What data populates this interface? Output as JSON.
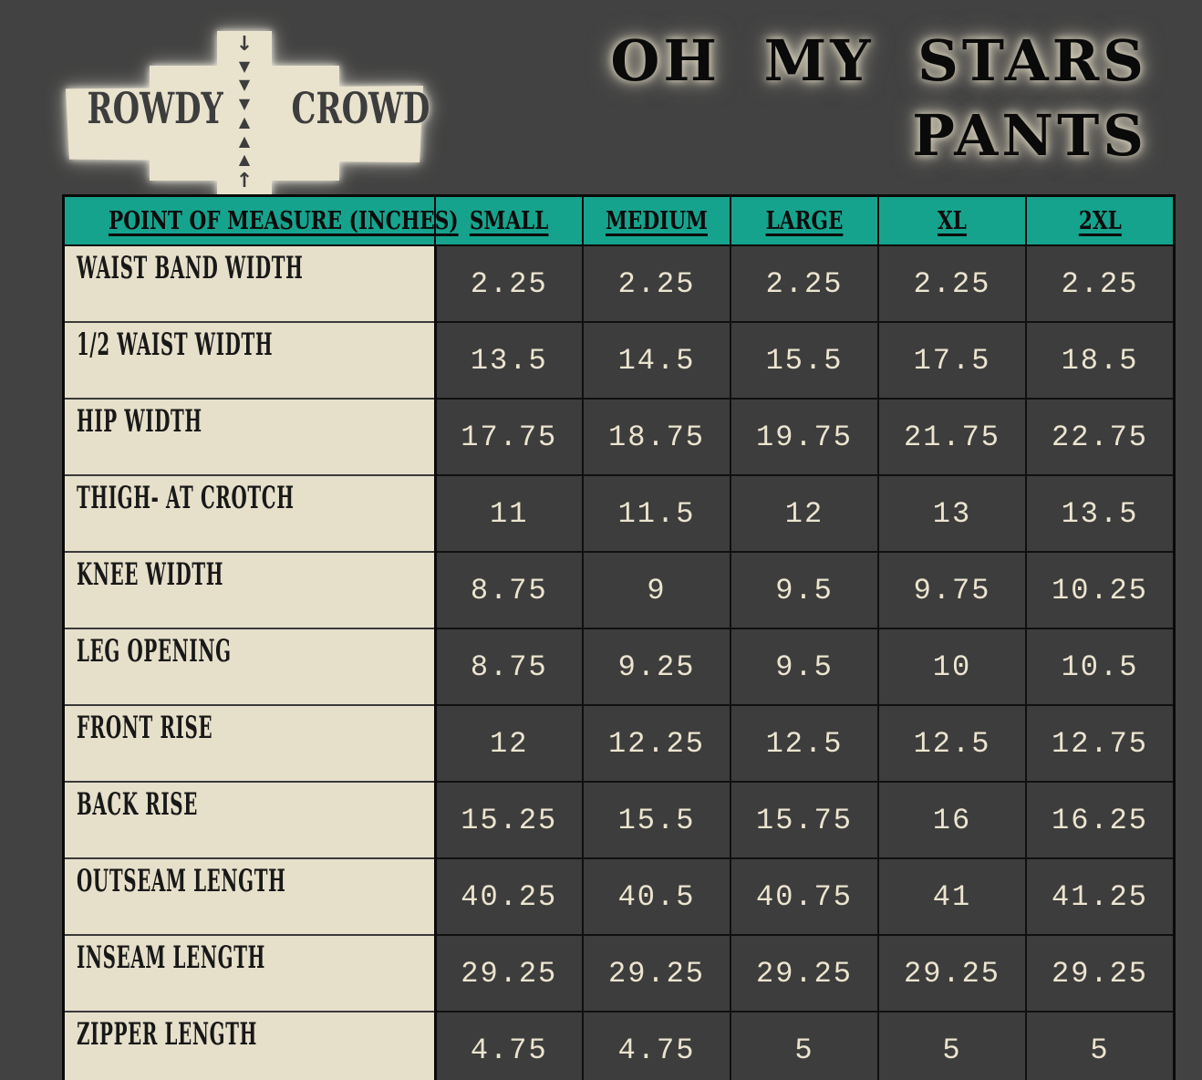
{
  "colors": {
    "background": "#424242",
    "teal_header": "#16a38d",
    "cream_label_bg": "#e6dfca",
    "cream_logo": "#e9e2cd",
    "value_text": "#ece4cf",
    "cell_dark": "#3d3d3d",
    "black_text": "#0a0a0a"
  },
  "logo": {
    "word_left": "ROWDY",
    "word_right": "CROWD",
    "arrow_glyphs": [
      "↓",
      "▼",
      "▼",
      "▼",
      "▲",
      "▲",
      "▲",
      "↑"
    ]
  },
  "title": {
    "line1": "OH MY STARS",
    "line2": "PANTS"
  },
  "chart_data": {
    "type": "table",
    "title": "OH MY STARS PANTS",
    "columns": [
      "POINT OF MEASURE (INCHES)",
      "SMALL",
      "MEDIUM",
      "LARGE",
      "XL",
      "2XL"
    ],
    "rows": [
      {
        "label": "WAIST BAND WIDTH",
        "values": [
          "2.25",
          "2.25",
          "2.25",
          "2.25",
          "2.25"
        ]
      },
      {
        "label": "1/2 WAIST WIDTH",
        "values": [
          "13.5",
          "14.5",
          "15.5",
          "17.5",
          "18.5"
        ]
      },
      {
        "label": "HIP WIDTH",
        "values": [
          "17.75",
          "18.75",
          "19.75",
          "21.75",
          "22.75"
        ]
      },
      {
        "label": "THIGH- AT CROTCH",
        "values": [
          "11",
          "11.5",
          "12",
          "13",
          "13.5"
        ]
      },
      {
        "label": "KNEE WIDTH",
        "values": [
          "8.75",
          "9",
          "9.5",
          "9.75",
          "10.25"
        ]
      },
      {
        "label": "LEG OPENING",
        "values": [
          "8.75",
          "9.25",
          "9.5",
          "10",
          "10.5"
        ]
      },
      {
        "label": "FRONT RISE",
        "values": [
          "12",
          "12.25",
          "12.5",
          "12.5",
          "12.75"
        ]
      },
      {
        "label": "BACK RISE",
        "values": [
          "15.25",
          "15.5",
          "15.75",
          "16",
          "16.25"
        ]
      },
      {
        "label": "OUTSEAM LENGTH",
        "values": [
          "40.25",
          "40.5",
          "40.75",
          "41",
          "41.25"
        ]
      },
      {
        "label": "INSEAM LENGTH",
        "values": [
          "29.25",
          "29.25",
          "29.25",
          "29.25",
          "29.25"
        ]
      },
      {
        "label": "ZIPPER LENGTH",
        "values": [
          "4.75",
          "4.75",
          "5",
          "5",
          "5"
        ]
      }
    ]
  }
}
